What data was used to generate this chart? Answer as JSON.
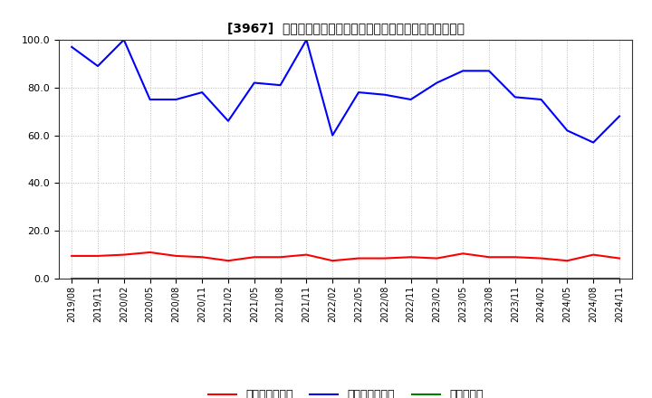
{
  "title": "[3967]  売上債権回転率、買入債務回転率、在庫回転率の推移",
  "xlabel_dates": [
    "2019/08",
    "2019/11",
    "2020/02",
    "2020/05",
    "2020/08",
    "2020/11",
    "2021/02",
    "2021/05",
    "2021/08",
    "2021/11",
    "2022/02",
    "2022/05",
    "2022/08",
    "2022/11",
    "2023/02",
    "2023/05",
    "2023/08",
    "2023/11",
    "2024/02",
    "2024/05",
    "2024/08",
    "2024/11"
  ],
  "receivables_turnover": [
    9.5,
    9.5,
    10.0,
    11.0,
    9.5,
    9.0,
    7.5,
    9.0,
    9.0,
    10.0,
    7.5,
    8.5,
    8.5,
    9.0,
    8.5,
    10.5,
    9.0,
    9.0,
    8.5,
    7.5,
    10.0,
    8.5
  ],
  "payables_turnover": [
    97.0,
    89.0,
    100.0,
    75.0,
    75.0,
    78.0,
    66.0,
    82.0,
    81.0,
    100.0,
    60.0,
    78.0,
    77.0,
    75.0,
    82.0,
    87.0,
    87.0,
    76.0,
    75.0,
    62.0,
    57.0,
    68.0
  ],
  "inventory_turnover": [
    0.0,
    0.0,
    0.0,
    0.0,
    0.0,
    0.0,
    0.0,
    0.0,
    0.0,
    0.0,
    0.0,
    0.0,
    0.0,
    0.0,
    0.0,
    0.0,
    0.0,
    0.0,
    0.0,
    0.0,
    0.0,
    0.0
  ],
  "ylim": [
    0.0,
    100.0
  ],
  "yticks": [
    0.0,
    20.0,
    40.0,
    60.0,
    80.0,
    100.0
  ],
  "line_color_receivables": "#ff0000",
  "line_color_payables": "#0000ff",
  "line_color_inventory": "#008000",
  "legend_label_receivables": "売上債権回転率",
  "legend_label_payables": "買入債務回転率",
  "legend_label_inventory": "在庫回転率",
  "background_color": "#ffffff",
  "grid_color": "#aaaaaa"
}
